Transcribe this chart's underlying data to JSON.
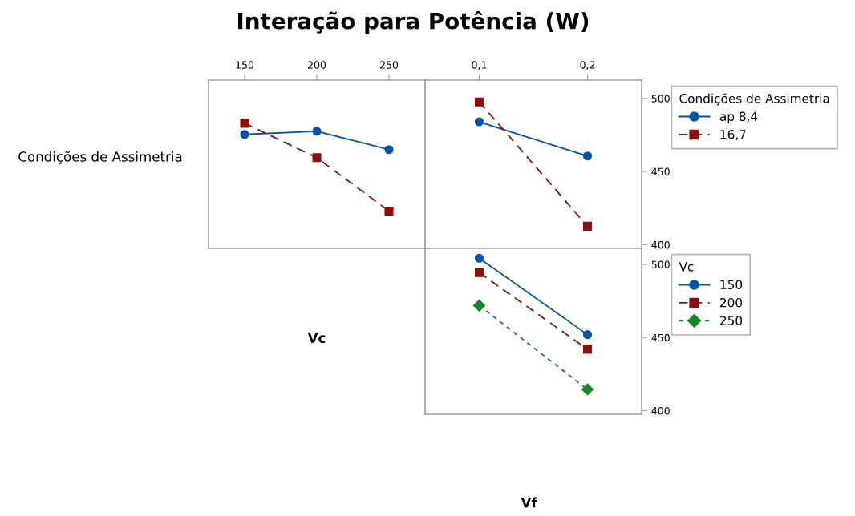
{
  "chart_data": [
    {
      "type": "line",
      "title": "Interação para Potência (W)",
      "ylabel": "Condições de Assimetria",
      "xlabel": "Vc",
      "x": [
        150,
        200,
        250
      ],
      "xlim": [
        125,
        275
      ],
      "xticks": [
        150,
        200,
        250
      ],
      "ylim": [
        397.5,
        512.5
      ],
      "tick_labels": "x",
      "legend": false,
      "series": [
        {
          "color": "#0054a6",
          "values": [
            475.4,
            477.5,
            465
          ],
          "marker": "circle",
          "line_style": "solid"
        },
        {
          "color": "#8b0f0f",
          "values": [
            483,
            459.5,
            423
          ],
          "marker": "square",
          "line_style": "dashed"
        }
      ]
    },
    {
      "type": "line",
      "legend_title": "Condições de Assimetria",
      "x": [
        0.1,
        0.2
      ],
      "xlim": [
        0.05,
        0.25
      ],
      "xticks": [
        {
          "value": 0.1,
          "label": "0,1"
        },
        {
          "value": 0.2,
          "label": "0,2"
        }
      ],
      "ylim": [
        397.5,
        512.5
      ],
      "yticks": [
        400,
        450,
        500
      ],
      "legend": "right",
      "series": [
        {
          "name": "ap 8,4",
          "color": "#0054a6",
          "values": [
            484,
            460.6
          ],
          "marker": "circle",
          "line_style": "solid"
        },
        {
          "name": "16,7",
          "color": "#8b0f0f",
          "values": [
            497.6,
            412.6
          ],
          "marker": "square",
          "line_style": "dashed"
        }
      ]
    },
    {
      "type": "line",
      "legend_title": "Vc",
      "xlabel": "Vf",
      "x": [
        0.1,
        0.2
      ],
      "xlim": [
        0.05,
        0.25
      ],
      "ylim": [
        397.5,
        511
      ],
      "yticks": [
        400,
        450,
        500
      ],
      "tick_labels": "y",
      "legend": "right",
      "series": [
        {
          "name": "150",
          "color": "#0054a6",
          "values": [
            504.3,
            452
          ],
          "marker": "circle",
          "line_style": "solid"
        },
        {
          "name": "200",
          "color": "#8b0f0f",
          "values": [
            494.4,
            442
          ],
          "marker": "square",
          "line_style": "dashed"
        },
        {
          "name": "250",
          "color": "#138a2a",
          "values": [
            471.9,
            414.5
          ],
          "marker": "diamond",
          "line_style": "dotted"
        }
      ]
    }
  ]
}
